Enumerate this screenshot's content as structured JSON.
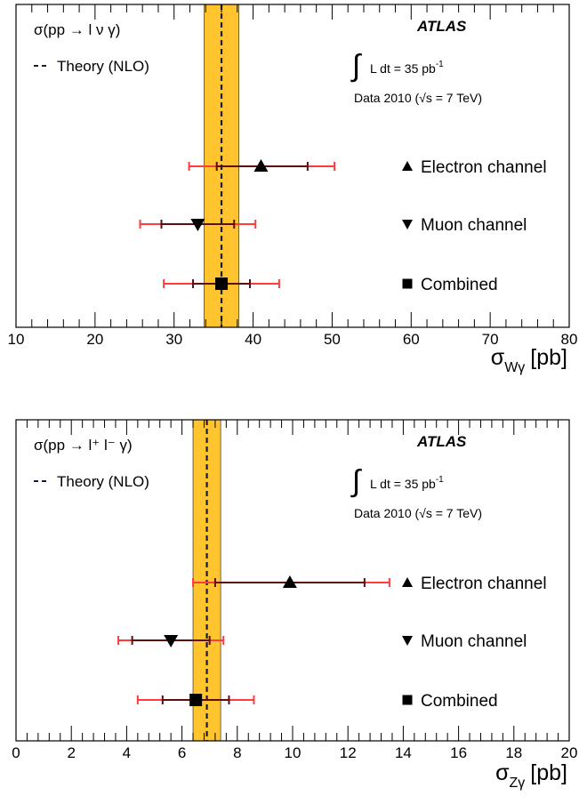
{
  "chart_data": [
    {
      "type": "scatter",
      "experiment": "ATLAS",
      "process_label": "σ(pp → l ν γ)",
      "theory_label": "Theory (NLO)",
      "lumi_label_prefix": "L dt = 35 pb",
      "lumi_label_exp": "-1",
      "data_label": "Data 2010 (√s = 7 TeV)",
      "xlabel_main": "σ",
      "xlabel_sub": "Wγ",
      "xlabel_unit": "[pb]",
      "xlim": [
        10,
        80
      ],
      "xticks": [
        10,
        20,
        30,
        40,
        50,
        60,
        70,
        80
      ],
      "xtick_labels": [
        "10",
        "20",
        "30",
        "40",
        "50",
        "60",
        "70",
        "80"
      ],
      "theory": {
        "value": 36.0,
        "band": [
          33.8,
          38.2
        ]
      },
      "series": [
        {
          "name": "Electron channel",
          "marker": "triangle-up",
          "value": 41.0,
          "stat_err": [
            35.4,
            46.9
          ],
          "total_err": [
            31.9,
            50.3
          ]
        },
        {
          "name": "Muon channel",
          "marker": "triangle-down",
          "value": 33.0,
          "stat_err": [
            28.4,
            37.6
          ],
          "total_err": [
            25.7,
            40.3
          ]
        },
        {
          "name": "Combined",
          "marker": "square",
          "value": 36.0,
          "stat_err": [
            32.4,
            39.6
          ],
          "total_err": [
            28.7,
            43.3
          ]
        }
      ]
    },
    {
      "type": "scatter",
      "experiment": "ATLAS",
      "process_label": "σ(pp → l⁺ l⁻ γ)",
      "theory_label": "Theory (NLO)",
      "lumi_label_prefix": "L dt = 35 pb",
      "lumi_label_exp": "-1",
      "data_label": "Data 2010 (√s = 7 TeV)",
      "xlabel_main": "σ",
      "xlabel_sub": "Zγ",
      "xlabel_unit": "[pb]",
      "xlim": [
        0,
        20
      ],
      "xticks": [
        0,
        2,
        4,
        6,
        8,
        10,
        12,
        14,
        16,
        18,
        20
      ],
      "xtick_labels": [
        "0",
        "2",
        "4",
        "6",
        "8",
        "10",
        "12",
        "14",
        "16",
        "18",
        "20"
      ],
      "theory": {
        "value": 6.9,
        "band": [
          6.4,
          7.4
        ]
      },
      "series": [
        {
          "name": "Electron channel",
          "marker": "triangle-up",
          "value": 9.9,
          "stat_err": [
            7.2,
            12.6
          ],
          "total_err": [
            6.4,
            13.5
          ]
        },
        {
          "name": "Muon channel",
          "marker": "triangle-down",
          "value": 5.6,
          "stat_err": [
            4.2,
            7.0
          ],
          "total_err": [
            3.7,
            7.5
          ]
        },
        {
          "name": "Combined",
          "marker": "square",
          "value": 6.5,
          "stat_err": [
            5.3,
            7.7
          ],
          "total_err": [
            4.4,
            8.6
          ]
        }
      ]
    }
  ]
}
